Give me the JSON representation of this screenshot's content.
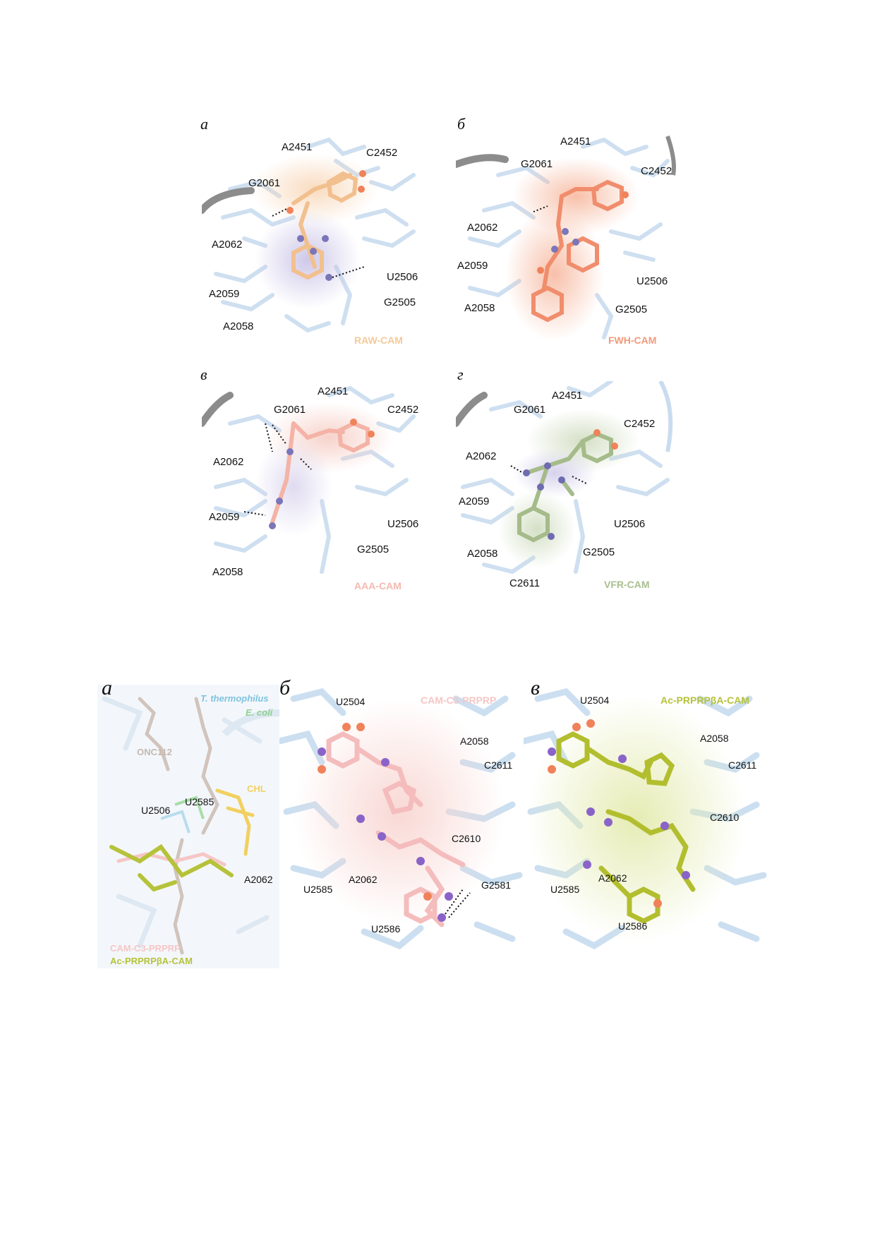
{
  "figure1": {
    "panels": [
      {
        "letter": "а",
        "ligand": "RAW-CAM",
        "ligand_color": "#f5c99a",
        "labels": {
          "a2451": "A2451",
          "c2452": "C2452",
          "g2061": "G2061",
          "a2062": "A2062",
          "u2506": "U2506",
          "a2059": "A2059",
          "g2505": "G2505",
          "a2058": "A2058"
        }
      },
      {
        "letter": "б",
        "ligand": "FWH-CAM",
        "ligand_color": "#f29a7a",
        "labels": {
          "a2451": "A2451",
          "g2061": "G2061",
          "c2452": "C2452",
          "a2062": "A2062",
          "a2059": "A2059",
          "u2506": "U2506",
          "a2058": "A2058",
          "g2505": "G2505"
        }
      },
      {
        "letter": "в",
        "ligand": "AAA-CAM",
        "ligand_color": "#f4b9b0",
        "labels": {
          "a2451": "A2451",
          "g2061": "G2061",
          "c2452": "C2452",
          "a2062": "A2062",
          "a2059": "A2059",
          "u2506": "U2506",
          "g2505": "G2505",
          "a2058": "A2058"
        }
      },
      {
        "letter": "г",
        "ligand": "VFR-CAM",
        "ligand_color": "#a9bf8f",
        "labels": {
          "a2451": "A2451",
          "g2061": "G2061",
          "c2452": "C2452",
          "a2062": "A2062",
          "a2059": "A2059",
          "u2506": "U2506",
          "a2058": "A2058",
          "g2505": "G2505",
          "c2611": "C2611"
        }
      }
    ]
  },
  "figure2": {
    "panel_a": {
      "letter": "а",
      "species1": "T. thermophilus",
      "species1_color": "#7fc3e0",
      "species2": "E. coli",
      "species2_color": "#8fd08f",
      "onc": "ONC112",
      "chl": "CHL",
      "chl_color": "#f2d060",
      "u2585": "U2585",
      "u2506": "U2506",
      "a2062": "A2062",
      "lig1": "CAM-C3-PRPRP",
      "lig1_color": "#f6c6c6",
      "lig2": "Ac-PRPRPβA-CAM",
      "lig2_color": "#b6c23a"
    },
    "panel_b": {
      "letter": "б",
      "ligand": "CAM-C3-PRPRP",
      "ligand_color": "#f6c6c6",
      "labels": {
        "u2504": "U2504",
        "a2058": "A2058",
        "c2611": "C2611",
        "c2610": "C2610",
        "u2585": "U2585",
        "a2062": "A2062",
        "g2581": "G2581",
        "u2586": "U2586"
      }
    },
    "panel_c": {
      "letter": "в",
      "ligand": "Ac-PRPRPβA-CAM",
      "ligand_color": "#b6c23a",
      "labels": {
        "u2504": "U2504",
        "a2058": "A2058",
        "c2611": "C2611",
        "c2610": "C2610",
        "u2585": "U2585",
        "a2062": "A2062",
        "u2586": "U2586"
      }
    }
  }
}
